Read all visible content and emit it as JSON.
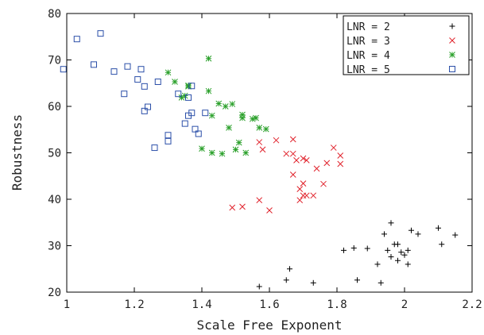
{
  "chart_data": {
    "type": "scatter",
    "xlabel": "Scale Free Exponent",
    "ylabel": "Robustness",
    "xlim": [
      1,
      2.2
    ],
    "ylim": [
      20,
      80
    ],
    "xticks": [
      "1",
      "1.2",
      "1.4",
      "1.6",
      "1.8",
      "2",
      "2.2"
    ],
    "yticks": [
      "20",
      "30",
      "40",
      "50",
      "60",
      "70",
      "80"
    ],
    "legend_position": "top-right",
    "series": [
      {
        "name": "LNR = 2",
        "marker": "plus",
        "color": "#000000",
        "points": [
          [
            1.57,
            21.2
          ],
          [
            1.65,
            22.6
          ],
          [
            1.66,
            25.0
          ],
          [
            1.73,
            22.0
          ],
          [
            1.82,
            29.0
          ],
          [
            1.85,
            29.5
          ],
          [
            1.86,
            22.6
          ],
          [
            1.89,
            29.4
          ],
          [
            1.92,
            26.0
          ],
          [
            1.93,
            22.0
          ],
          [
            1.94,
            32.5
          ],
          [
            1.95,
            29.0
          ],
          [
            1.96,
            34.9
          ],
          [
            1.96,
            27.6
          ],
          [
            1.97,
            30.3
          ],
          [
            1.98,
            30.3
          ],
          [
            1.98,
            26.8
          ],
          [
            1.99,
            28.6
          ],
          [
            2.0,
            28.0
          ],
          [
            2.01,
            26.0
          ],
          [
            2.01,
            29.0
          ],
          [
            2.02,
            33.3
          ],
          [
            2.04,
            32.5
          ],
          [
            2.1,
            33.8
          ],
          [
            2.11,
            30.3
          ],
          [
            2.15,
            32.3
          ]
        ]
      },
      {
        "name": "LNR = 3",
        "marker": "cross",
        "color": "#e0202a",
        "points": [
          [
            1.49,
            38.2
          ],
          [
            1.52,
            38.4
          ],
          [
            1.57,
            39.8
          ],
          [
            1.57,
            52.3
          ],
          [
            1.58,
            50.7
          ],
          [
            1.6,
            37.6
          ],
          [
            1.62,
            52.7
          ],
          [
            1.65,
            49.8
          ],
          [
            1.67,
            52.9
          ],
          [
            1.67,
            49.8
          ],
          [
            1.67,
            45.3
          ],
          [
            1.68,
            48.4
          ],
          [
            1.69,
            42.2
          ],
          [
            1.69,
            39.8
          ],
          [
            1.7,
            40.8
          ],
          [
            1.7,
            43.4
          ],
          [
            1.7,
            48.8
          ],
          [
            1.71,
            48.4
          ],
          [
            1.71,
            40.8
          ],
          [
            1.73,
            40.8
          ],
          [
            1.74,
            46.6
          ],
          [
            1.76,
            43.3
          ],
          [
            1.77,
            47.8
          ],
          [
            1.79,
            51.1
          ],
          [
            1.81,
            49.4
          ],
          [
            1.81,
            47.6
          ]
        ]
      },
      {
        "name": "LNR = 4",
        "marker": "star",
        "color": "#2aa02a",
        "points": [
          [
            1.3,
            67.3
          ],
          [
            1.32,
            65.3
          ],
          [
            1.34,
            61.9
          ],
          [
            1.35,
            62.3
          ],
          [
            1.36,
            64.3
          ],
          [
            1.36,
            64.5
          ],
          [
            1.4,
            50.9
          ],
          [
            1.42,
            70.3
          ],
          [
            1.42,
            63.3
          ],
          [
            1.43,
            50.0
          ],
          [
            1.43,
            58.0
          ],
          [
            1.45,
            60.6
          ],
          [
            1.46,
            49.8
          ],
          [
            1.47,
            60.0
          ],
          [
            1.48,
            55.4
          ],
          [
            1.49,
            60.5
          ],
          [
            1.5,
            50.7
          ],
          [
            1.51,
            52.2
          ],
          [
            1.52,
            58.2
          ],
          [
            1.52,
            57.5
          ],
          [
            1.53,
            50.0
          ],
          [
            1.55,
            57.3
          ],
          [
            1.56,
            57.5
          ],
          [
            1.57,
            55.4
          ],
          [
            1.59,
            55.1
          ]
        ]
      },
      {
        "name": "LNR = 5",
        "marker": "square",
        "color": "#2b4fa8",
        "points": [
          [
            0.99,
            68.0
          ],
          [
            1.03,
            74.5
          ],
          [
            1.08,
            69.0
          ],
          [
            1.1,
            75.7
          ],
          [
            1.14,
            67.5
          ],
          [
            1.17,
            62.7
          ],
          [
            1.18,
            68.6
          ],
          [
            1.21,
            65.8
          ],
          [
            1.22,
            68.0
          ],
          [
            1.23,
            59.0
          ],
          [
            1.23,
            64.3
          ],
          [
            1.24,
            59.9
          ],
          [
            1.26,
            51.1
          ],
          [
            1.27,
            65.3
          ],
          [
            1.3,
            53.8
          ],
          [
            1.3,
            52.5
          ],
          [
            1.33,
            62.7
          ],
          [
            1.35,
            56.3
          ],
          [
            1.36,
            58.0
          ],
          [
            1.36,
            61.9
          ],
          [
            1.37,
            58.6
          ],
          [
            1.37,
            64.4
          ],
          [
            1.38,
            55.1
          ],
          [
            1.39,
            54.1
          ],
          [
            1.41,
            58.6
          ]
        ]
      }
    ]
  }
}
